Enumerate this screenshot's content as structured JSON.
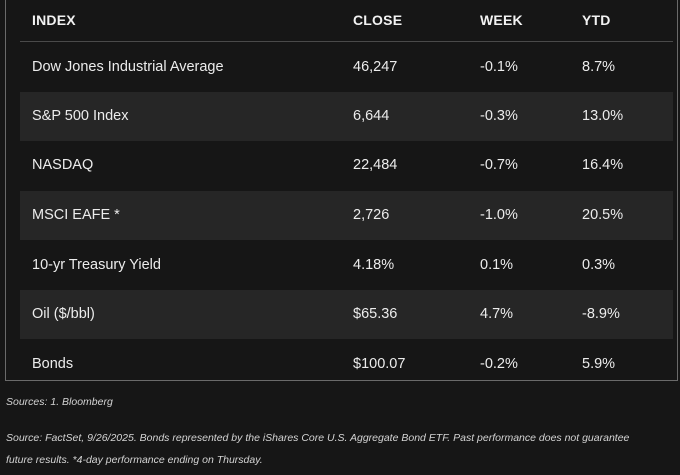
{
  "table": {
    "headers": [
      "INDEX",
      "CLOSE",
      "WEEK",
      "YTD"
    ],
    "rows": [
      {
        "index": "Dow Jones Industrial Average",
        "close": "46,247",
        "week": "-0.1%",
        "ytd": "8.7%"
      },
      {
        "index": "S&P 500 Index",
        "close": "6,644",
        "week": "-0.3%",
        "ytd": "13.0%"
      },
      {
        "index": "NASDAQ",
        "close": "22,484",
        "week": "-0.7%",
        "ytd": "16.4%"
      },
      {
        "index": "MSCI EAFE *",
        "close": "2,726",
        "week": "-1.0%",
        "ytd": "20.5%"
      },
      {
        "index": "10-yr Treasury Yield",
        "close": "4.18%",
        "week": "0.1%",
        "ytd": "0.3%"
      },
      {
        "index": "Oil ($/bbl)",
        "close": "$65.36",
        "week": "4.7%",
        "ytd": "-8.9%"
      },
      {
        "index": "Bonds",
        "close": "$100.07",
        "week": "-0.2%",
        "ytd": "5.9%"
      }
    ]
  },
  "notes": {
    "sources": "Sources: 1. Bloomberg",
    "source_detail_line1": "Source: FactSet, 9/26/2025. Bonds represented by the iShares Core U.S. Aggregate Bond ETF. Past performance does not guarantee",
    "source_detail_line2": "future results. *4-day performance ending on Thursday."
  }
}
